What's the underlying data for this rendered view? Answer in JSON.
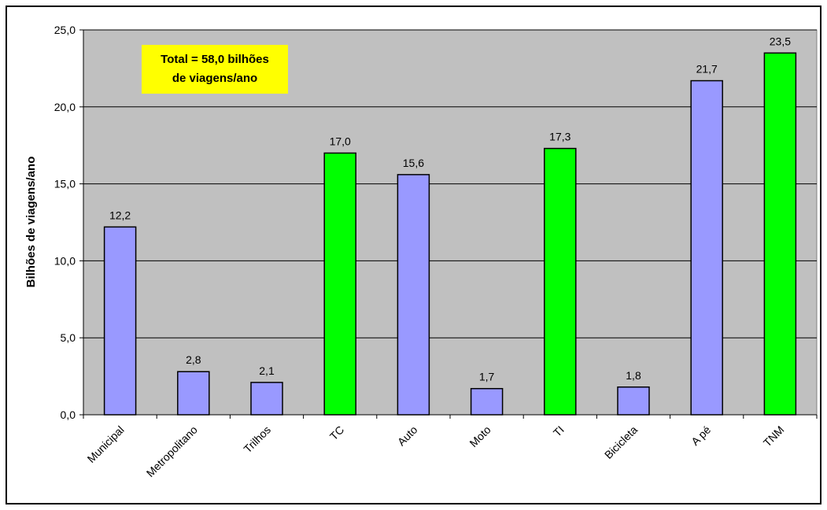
{
  "chart_data": {
    "type": "bar",
    "categories": [
      "Municipal",
      "Metropolitano",
      "Trilhos",
      "TC",
      "Auto",
      "Moto",
      "TI",
      "Bicicleta",
      "A pé",
      "TNM"
    ],
    "values": [
      12.2,
      2.8,
      2.1,
      17.0,
      15.6,
      1.7,
      17.3,
      1.8,
      21.7,
      23.5
    ],
    "value_labels": [
      "12,2",
      "2,8",
      "2,1",
      "17,0",
      "15,6",
      "1,7",
      "17,3",
      "1,8",
      "21,7",
      "23,5"
    ],
    "bar_colors": [
      "#9999ff",
      "#9999ff",
      "#9999ff",
      "#00ff00",
      "#9999ff",
      "#9999ff",
      "#00ff00",
      "#9999ff",
      "#9999ff",
      "#00ff00"
    ],
    "ylabel": "Bilhões de viagens/ano",
    "xlabel": "",
    "title": "",
    "ylim": [
      0,
      25
    ],
    "yticks": [
      0,
      5,
      10,
      15,
      20,
      25
    ],
    "ytick_labels": [
      "0,0",
      "5,0",
      "10,0",
      "15,0",
      "20,0",
      "25,0"
    ],
    "grid": true,
    "legend": "none",
    "annotation": {
      "lines": [
        "Total = 58,0 bilhões",
        "de viagens/ano"
      ],
      "background": "#ffff00"
    },
    "plot_background": "#c0c0c0"
  }
}
